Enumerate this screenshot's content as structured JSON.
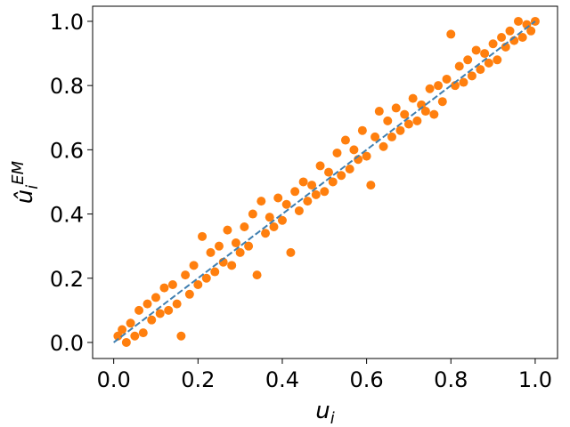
{
  "chart_data": {
    "type": "scatter",
    "xlabel": {
      "base": "u",
      "sub": "i"
    },
    "ylabel": {
      "base": "û",
      "sub": "i",
      "sup": "EM"
    },
    "xlim": [
      -0.05,
      1.053
    ],
    "ylim": [
      -0.05,
      1.047
    ],
    "xticks": [
      {
        "value": 0,
        "label": "0.0"
      },
      0.2,
      0.4,
      0.6,
      0.8,
      {
        "value": 1,
        "label": "1.0"
      }
    ],
    "yticks": [
      {
        "value": 0,
        "label": "0.0"
      },
      0.2,
      0.4,
      0.6,
      0.8,
      {
        "value": 1,
        "label": "1.0"
      }
    ],
    "series": [
      {
        "color": "#ff7f0e",
        "x": [
          0.01,
          0.02,
          0.03,
          0.04,
          0.05,
          0.06,
          0.07,
          0.08,
          0.09,
          0.1,
          0.11,
          0.12,
          0.13,
          0.14,
          0.15,
          0.16,
          0.17,
          0.18,
          0.19,
          0.2,
          0.21,
          0.22,
          0.23,
          0.24,
          0.25,
          0.26,
          0.27,
          0.28,
          0.29,
          0.3,
          0.31,
          0.32,
          0.33,
          0.34,
          0.35,
          0.36,
          0.37,
          0.38,
          0.39,
          0.4,
          0.41,
          0.42,
          0.43,
          0.44,
          0.45,
          0.46,
          0.47,
          0.48,
          0.49,
          0.5,
          0.51,
          0.52,
          0.53,
          0.54,
          0.55,
          0.56,
          0.57,
          0.58,
          0.59,
          0.6,
          0.61,
          0.62,
          0.63,
          0.64,
          0.65,
          0.66,
          0.67,
          0.68,
          0.69,
          0.7,
          0.71,
          0.72,
          0.73,
          0.74,
          0.75,
          0.76,
          0.77,
          0.78,
          0.79,
          0.8,
          0.81,
          0.82,
          0.83,
          0.84,
          0.85,
          0.86,
          0.87,
          0.88,
          0.89,
          0.9,
          0.91,
          0.92,
          0.93,
          0.94,
          0.95,
          0.96,
          0.97,
          0.98,
          0.99,
          1.0
        ],
        "values": [
          0.02,
          0.04,
          0.0,
          0.06,
          0.02,
          0.1,
          0.03,
          0.12,
          0.07,
          0.14,
          0.09,
          0.17,
          0.1,
          0.18,
          0.12,
          0.02,
          0.21,
          0.15,
          0.24,
          0.18,
          0.33,
          0.2,
          0.28,
          0.22,
          0.3,
          0.25,
          0.35,
          0.24,
          0.31,
          0.28,
          0.36,
          0.3,
          0.4,
          0.21,
          0.44,
          0.34,
          0.39,
          0.36,
          0.45,
          0.38,
          0.43,
          0.28,
          0.47,
          0.41,
          0.5,
          0.44,
          0.49,
          0.46,
          0.55,
          0.47,
          0.53,
          0.5,
          0.59,
          0.52,
          0.63,
          0.54,
          0.6,
          0.57,
          0.66,
          0.58,
          0.49,
          0.64,
          0.72,
          0.61,
          0.69,
          0.64,
          0.73,
          0.66,
          0.71,
          0.68,
          0.76,
          0.69,
          0.74,
          0.72,
          0.79,
          0.71,
          0.8,
          0.75,
          0.82,
          0.96,
          0.8,
          0.86,
          0.81,
          0.88,
          0.83,
          0.91,
          0.85,
          0.9,
          0.87,
          0.93,
          0.88,
          0.95,
          0.92,
          0.97,
          0.94,
          1.0,
          0.95,
          0.99,
          0.97,
          1.0
        ]
      },
      {
        "color": "#3f7fb0",
        "style": "dashed",
        "x": [
          0,
          1
        ],
        "values": [
          0,
          1
        ]
      }
    ]
  }
}
